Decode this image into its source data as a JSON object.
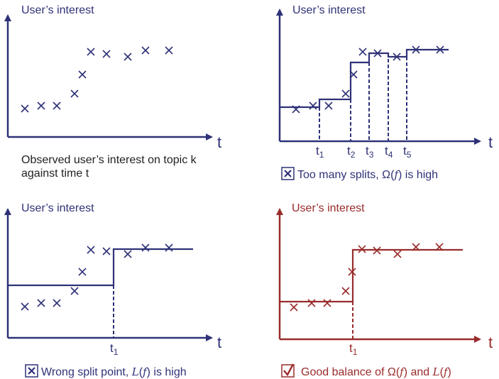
{
  "colors": {
    "blue": "#2f3277",
    "red": "#9a2c2c"
  },
  "panels": {
    "observed": {
      "y_label": "User’s interest",
      "x_label": "t",
      "caption_line1": "Observed user’s interest on topic k",
      "caption_line2": "against time t"
    },
    "too_many_splits": {
      "y_label": "User’s interest",
      "x_label": "t",
      "split_labels": [
        {
          "base": "t",
          "sub": "1"
        },
        {
          "base": "t",
          "sub": "2"
        },
        {
          "base": "t",
          "sub": "3"
        },
        {
          "base": "t",
          "sub": "4"
        },
        {
          "base": "t",
          "sub": "5"
        }
      ],
      "caption_icon": "cross-box-icon",
      "caption_a": "Too many splits, Ω(",
      "caption_f": "f",
      "caption_b": ")  is high"
    },
    "wrong_split": {
      "y_label": "User’s interest",
      "x_label": "t",
      "split_labels": [
        {
          "base": "t",
          "sub": "1"
        }
      ],
      "caption_icon": "cross-box-icon",
      "caption_a": "Wrong split point, ",
      "caption_L": "L",
      "caption_b": "(",
      "caption_f": "f",
      "caption_c": ") is high"
    },
    "good_balance": {
      "y_label": "User’s interest",
      "x_label": "t",
      "split_labels": [
        {
          "base": "t",
          "sub": "1"
        }
      ],
      "caption_icon": "check-box-icon",
      "caption_a": "Good balance of Ω(",
      "caption_f": "f",
      "caption_b": ") and ",
      "caption_L": "L",
      "caption_c": "(",
      "caption_f2": "f",
      "caption_d": ")"
    }
  }
}
